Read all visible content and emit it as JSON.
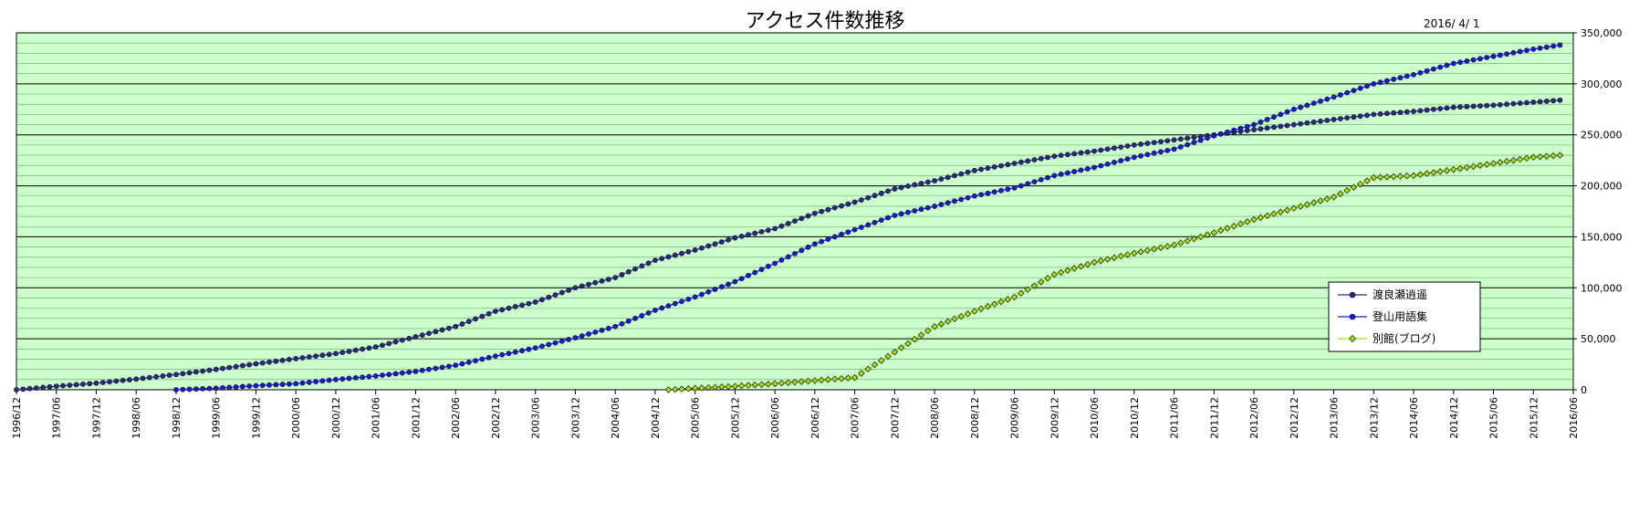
{
  "chart_data": {
    "type": "line",
    "title": "アクセス件数推移",
    "date_label": "2016/ 4/ 1",
    "xlabel": "",
    "ylabel": "",
    "x_range": [
      "1996/12",
      "2016/06"
    ],
    "ylim": [
      0,
      350000
    ],
    "y_ticks": [
      0,
      50000,
      100000,
      150000,
      200000,
      250000,
      300000,
      350000
    ],
    "y_tick_labels": [
      "0",
      "50,000",
      "100,000",
      "150,000",
      "200,000",
      "250,000",
      "300,000",
      "350,000"
    ],
    "x_ticks": [
      "1996/12",
      "1997/06",
      "1997/12",
      "1998/06",
      "1998/12",
      "1999/06",
      "1999/12",
      "2000/06",
      "2000/12",
      "2001/06",
      "2001/12",
      "2002/06",
      "2002/12",
      "2003/06",
      "2003/12",
      "2004/06",
      "2004/12",
      "2005/06",
      "2005/12",
      "2006/06",
      "2006/12",
      "2007/06",
      "2007/12",
      "2008/06",
      "2008/12",
      "2009/06",
      "2009/12",
      "2010/06",
      "2010/12",
      "2011/06",
      "2011/12",
      "2012/06",
      "2012/12",
      "2013/06",
      "2013/12",
      "2014/06",
      "2014/12",
      "2015/06",
      "2015/12",
      "2016/06"
    ],
    "grid": "horizontal",
    "background": "#ccffcc",
    "legend_position": "right",
    "series": [
      {
        "name": "渡良瀬逍遥",
        "color": "#2a2a7a",
        "marker": "circle",
        "points": [
          [
            "1996/12",
            0
          ],
          [
            "1997/06",
            3500
          ],
          [
            "1997/12",
            6500
          ],
          [
            "1998/06",
            10500
          ],
          [
            "1998/12",
            15000
          ],
          [
            "1999/06",
            20000
          ],
          [
            "1999/12",
            25500
          ],
          [
            "2000/06",
            30500
          ],
          [
            "2000/12",
            35500
          ],
          [
            "2001/06",
            42000
          ],
          [
            "2001/12",
            52000
          ],
          [
            "2002/06",
            62000
          ],
          [
            "2002/12",
            77000
          ],
          [
            "2003/06",
            86000
          ],
          [
            "2003/12",
            100000
          ],
          [
            "2004/06",
            110000
          ],
          [
            "2004/12",
            127000
          ],
          [
            "2005/06",
            137000
          ],
          [
            "2005/12",
            149000
          ],
          [
            "2006/06",
            158000
          ],
          [
            "2006/12",
            173000
          ],
          [
            "2007/06",
            184000
          ],
          [
            "2007/12",
            197000
          ],
          [
            "2008/06",
            205000
          ],
          [
            "2008/12",
            215000
          ],
          [
            "2009/06",
            222000
          ],
          [
            "2009/12",
            229000
          ],
          [
            "2010/06",
            234000
          ],
          [
            "2010/12",
            240000
          ],
          [
            "2011/06",
            245000
          ],
          [
            "2011/12",
            250000
          ],
          [
            "2012/06",
            255000
          ],
          [
            "2012/12",
            260000
          ],
          [
            "2013/06",
            265000
          ],
          [
            "2013/12",
            270000
          ],
          [
            "2014/06",
            273000
          ],
          [
            "2014/12",
            277000
          ],
          [
            "2015/06",
            279000
          ],
          [
            "2015/12",
            282000
          ],
          [
            "2016/04",
            284000
          ]
        ]
      },
      {
        "name": "登山用語集",
        "color": "#1a1acc",
        "marker": "circle",
        "points": [
          [
            "1998/12",
            0
          ],
          [
            "1999/06",
            1500
          ],
          [
            "1999/12",
            4000
          ],
          [
            "2000/06",
            6000
          ],
          [
            "2000/12",
            10000
          ],
          [
            "2001/06",
            13500
          ],
          [
            "2001/12",
            18000
          ],
          [
            "2002/06",
            24000
          ],
          [
            "2002/12",
            33000
          ],
          [
            "2003/06",
            41000
          ],
          [
            "2003/12",
            51000
          ],
          [
            "2004/06",
            62000
          ],
          [
            "2004/12",
            78000
          ],
          [
            "2005/06",
            91000
          ],
          [
            "2005/12",
            106000
          ],
          [
            "2006/06",
            124000
          ],
          [
            "2006/12",
            143000
          ],
          [
            "2007/06",
            157000
          ],
          [
            "2007/12",
            171000
          ],
          [
            "2008/06",
            180000
          ],
          [
            "2008/12",
            190000
          ],
          [
            "2009/06",
            198000
          ],
          [
            "2009/12",
            210000
          ],
          [
            "2010/06",
            218000
          ],
          [
            "2010/12",
            228000
          ],
          [
            "2011/06",
            236000
          ],
          [
            "2011/12",
            249000
          ],
          [
            "2012/06",
            260000
          ],
          [
            "2012/12",
            275000
          ],
          [
            "2013/06",
            287000
          ],
          [
            "2013/12",
            300000
          ],
          [
            "2014/06",
            309000
          ],
          [
            "2014/12",
            320000
          ],
          [
            "2015/06",
            327000
          ],
          [
            "2015/12",
            334000
          ],
          [
            "2016/04",
            338000
          ]
        ]
      },
      {
        "name": "別館(ブログ)",
        "color": "#aadd22",
        "marker": "diamond",
        "points": [
          [
            "2005/02",
            0
          ],
          [
            "2005/06",
            1500
          ],
          [
            "2005/12",
            3500
          ],
          [
            "2006/06",
            6000
          ],
          [
            "2006/12",
            9000
          ],
          [
            "2007/06",
            12000
          ],
          [
            "2007/12",
            37000
          ],
          [
            "2008/06",
            62000
          ],
          [
            "2008/12",
            77000
          ],
          [
            "2009/06",
            91000
          ],
          [
            "2009/12",
            113000
          ],
          [
            "2010/06",
            125000
          ],
          [
            "2010/12",
            134000
          ],
          [
            "2011/06",
            142000
          ],
          [
            "2011/12",
            154000
          ],
          [
            "2012/06",
            167000
          ],
          [
            "2012/12",
            178000
          ],
          [
            "2013/06",
            189000
          ],
          [
            "2013/12",
            208000
          ],
          [
            "2014/06",
            210000
          ],
          [
            "2014/12",
            216000
          ],
          [
            "2015/06",
            222000
          ],
          [
            "2015/12",
            228000
          ],
          [
            "2016/04",
            230000
          ]
        ]
      }
    ]
  }
}
